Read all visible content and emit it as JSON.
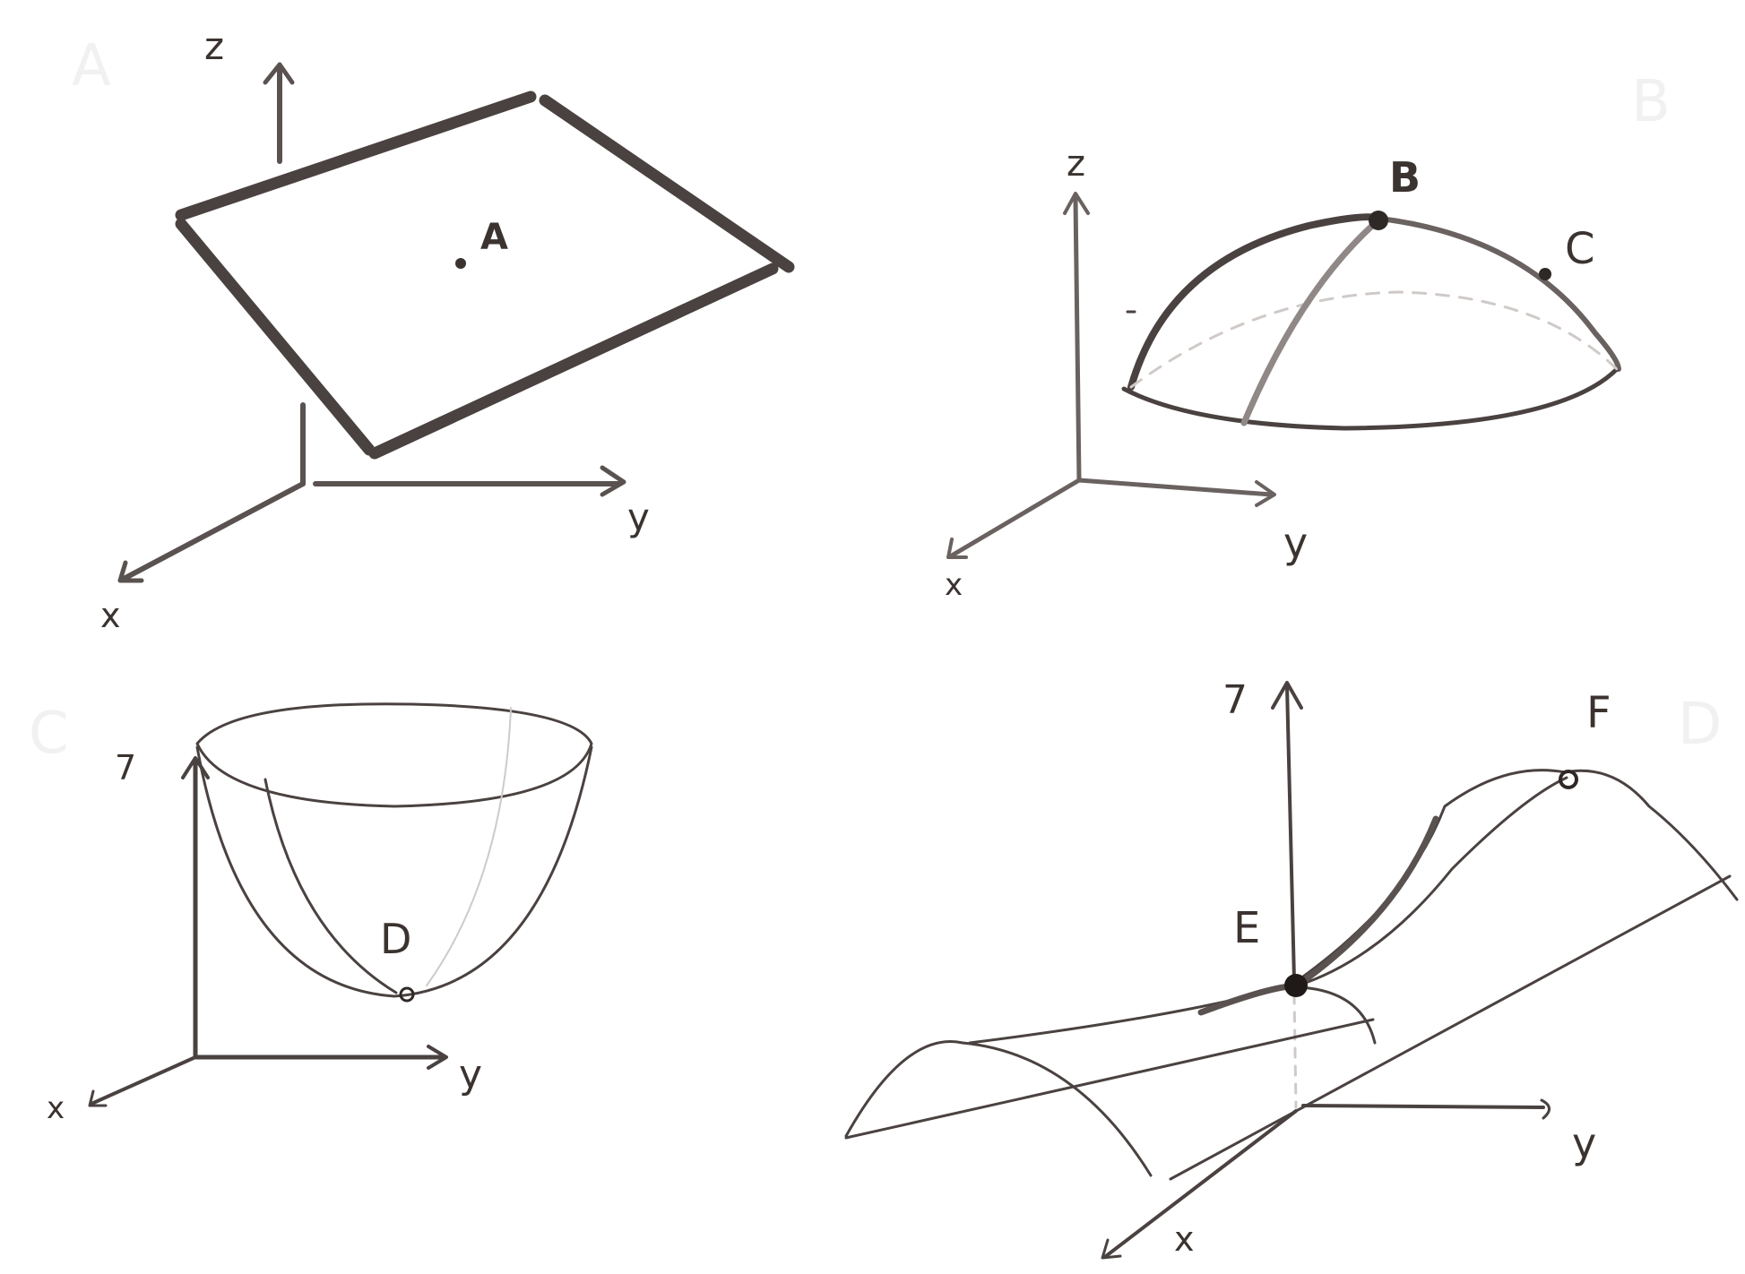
{
  "colors": {
    "ink": "#4a4240",
    "ink_light": "#8f8886",
    "ink_faint": "#cfcac8",
    "panel_letter": "#f1f1f1",
    "background": "#ffffff"
  },
  "panels": [
    {
      "id": "A",
      "panel_letter": "A",
      "surface": "plane",
      "axes": {
        "x": "x",
        "y": "y",
        "z": "z"
      },
      "points": [
        {
          "label": "A"
        }
      ]
    },
    {
      "id": "B",
      "panel_letter": "B",
      "surface": "dome",
      "axes": {
        "x": "x",
        "y": "y",
        "z": "z"
      },
      "points": [
        {
          "label": "B"
        },
        {
          "label": "C"
        }
      ]
    },
    {
      "id": "C",
      "panel_letter": "C",
      "surface": "bowl",
      "axes": {
        "x": "x",
        "y": "y",
        "z": "7"
      },
      "points": [
        {
          "label": "D"
        }
      ]
    },
    {
      "id": "D",
      "panel_letter": "D",
      "surface": "saddle",
      "axes": {
        "x": "x",
        "y": "y",
        "z": "7"
      },
      "points": [
        {
          "label": "E"
        },
        {
          "label": "F"
        }
      ]
    }
  ]
}
